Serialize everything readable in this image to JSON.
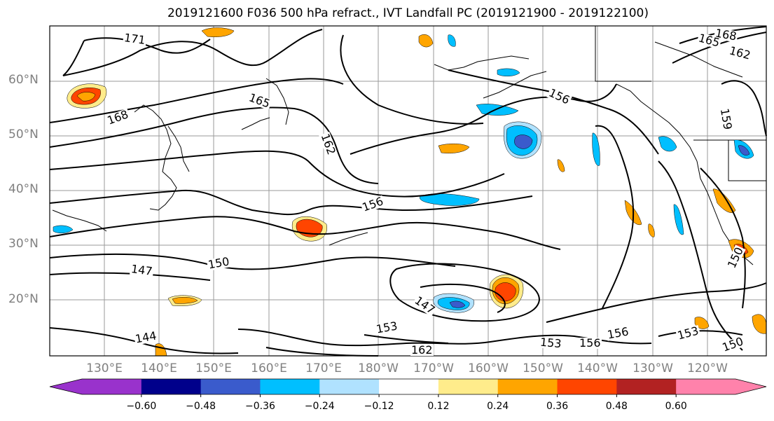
{
  "title": "2019121600 F036 500 hPa refract., IVT Landfall PC (2019121900 - 2019122100)",
  "lat_labels": [
    "60°N",
    "50°N",
    "40°N",
    "30°N",
    "20°N"
  ],
  "lon_labels": [
    "130°E",
    "140°E",
    "150°E",
    "160°E",
    "170°E",
    "180°W",
    "170°W",
    "160°W",
    "150°W",
    "140°W",
    "130°W",
    "120°W"
  ],
  "contour_labels": [
    "171",
    "168",
    "165",
    "162",
    "156",
    "150",
    "147",
    "144",
    "153",
    "162",
    "168",
    "165",
    "162",
    "156",
    "153",
    "156",
    "150",
    "159",
    "147",
    "156",
    "153",
    "150"
  ],
  "colorbar": {
    "colors": [
      "#9932cc",
      "#00008b",
      "#3a5bcc",
      "#00bfff",
      "#b0e2ff",
      "#ffffff",
      "#ffec8b",
      "#ffa500",
      "#ff4500",
      "#b22222",
      "#ff82ab"
    ],
    "ticks": [
      "−0.60",
      "−0.48",
      "−0.36",
      "−0.24",
      "−0.12",
      "0.12",
      "0.24",
      "0.36",
      "0.48",
      "0.60"
    ]
  }
}
